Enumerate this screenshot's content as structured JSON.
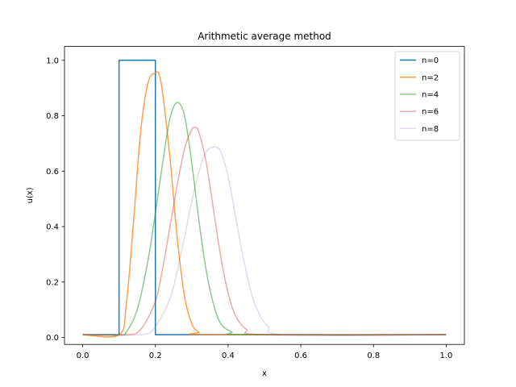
{
  "chart_data": {
    "type": "line",
    "title": "Arithmetic average method",
    "xlabel": "x",
    "ylabel": "u(x)",
    "xlim": [
      -0.05,
      1.05
    ],
    "ylim": [
      -0.025,
      1.05
    ],
    "xticks": [
      0.0,
      0.2,
      0.4,
      0.6,
      0.8,
      1.0
    ],
    "yticks": [
      0.0,
      0.2,
      0.4,
      0.6,
      0.8,
      1.0
    ],
    "xtick_labels": [
      "0.0",
      "0.2",
      "0.4",
      "0.6",
      "0.8",
      "1.0"
    ],
    "ytick_labels": [
      "0.0",
      "0.2",
      "0.4",
      "0.6",
      "0.8",
      "1.0"
    ],
    "grid": false,
    "legend_position": "top-right",
    "baseline": 0.01,
    "series": [
      {
        "name": "n=0",
        "color": "#1f77b4",
        "opacity": 1.0,
        "x": [
          0.0,
          0.1,
          0.1,
          0.2,
          0.2,
          1.0
        ],
        "y": [
          0.01,
          0.01,
          1.0,
          1.0,
          0.01,
          0.01
        ]
      },
      {
        "name": "n=2",
        "color": "#ff7f0e",
        "opacity": 0.75,
        "x": [
          0.0,
          0.1,
          0.12,
          0.14,
          0.16,
          0.18,
          0.2,
          0.21,
          0.22,
          0.24,
          0.26,
          0.28,
          0.3,
          0.32,
          0.35,
          1.0
        ],
        "y": [
          0.01,
          0.01,
          0.12,
          0.42,
          0.75,
          0.92,
          0.955,
          0.95,
          0.88,
          0.65,
          0.36,
          0.15,
          0.05,
          0.02,
          0.01,
          0.01
        ]
      },
      {
        "name": "n=4",
        "color": "#2ca02c",
        "opacity": 0.55,
        "x": [
          0.0,
          0.1,
          0.12,
          0.15,
          0.18,
          0.2,
          0.22,
          0.24,
          0.26,
          0.28,
          0.3,
          0.32,
          0.34,
          0.36,
          0.38,
          0.41,
          0.45,
          1.0
        ],
        "y": [
          0.01,
          0.01,
          0.02,
          0.1,
          0.28,
          0.45,
          0.63,
          0.79,
          0.848,
          0.8,
          0.63,
          0.42,
          0.24,
          0.12,
          0.05,
          0.02,
          0.01,
          0.01
        ]
      },
      {
        "name": "n=6",
        "color": "#d62728",
        "opacity": 0.4,
        "x": [
          0.0,
          0.12,
          0.16,
          0.2,
          0.22,
          0.24,
          0.26,
          0.28,
          0.3,
          0.31,
          0.32,
          0.34,
          0.36,
          0.38,
          0.4,
          0.42,
          0.45,
          0.5,
          1.0
        ],
        "y": [
          0.01,
          0.01,
          0.03,
          0.13,
          0.25,
          0.4,
          0.55,
          0.68,
          0.75,
          0.757,
          0.74,
          0.63,
          0.46,
          0.29,
          0.16,
          0.08,
          0.03,
          0.01,
          0.01
        ]
      },
      {
        "name": "n=8",
        "color": "#9467bd",
        "opacity": 0.25,
        "x": [
          0.0,
          0.16,
          0.2,
          0.24,
          0.26,
          0.28,
          0.3,
          0.32,
          0.34,
          0.36,
          0.37,
          0.38,
          0.4,
          0.42,
          0.44,
          0.46,
          0.48,
          0.51,
          0.56,
          1.0
        ],
        "y": [
          0.01,
          0.01,
          0.04,
          0.14,
          0.24,
          0.36,
          0.49,
          0.6,
          0.67,
          0.688,
          0.685,
          0.67,
          0.58,
          0.44,
          0.3,
          0.18,
          0.1,
          0.04,
          0.01,
          0.01
        ]
      }
    ]
  }
}
